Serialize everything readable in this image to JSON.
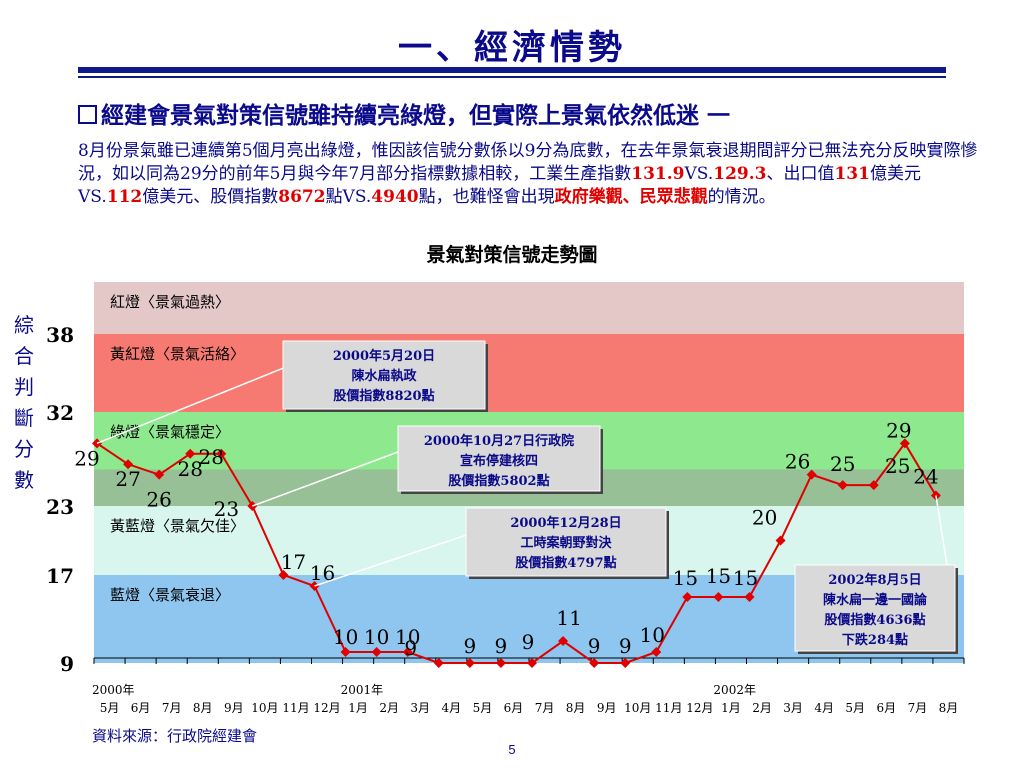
{
  "page": {
    "title": "一、經濟情勢",
    "headline": "經建會景氣對策信號雖持續亮綠燈，但實際上景氣依然低迷",
    "paragraph": [
      {
        "t": " 8月份景氣雖已連續第5個月亮出綠燈，惟因該信號分數係以9分為底數，在去年景氣衰退期間評分已無法充分反映實際慘況，如以同為29分的前年5月與今年7月部分指標數據相較，工業生產指數",
        "red": false
      },
      {
        "t": "131.9",
        "red": true
      },
      {
        "t": "VS.",
        "red": false
      },
      {
        "t": "129.3",
        "red": true
      },
      {
        "t": "、出口值",
        "red": false
      },
      {
        "t": "131",
        "red": true
      },
      {
        "t": "億美元VS.",
        "red": false
      },
      {
        "t": "112",
        "red": true
      },
      {
        "t": "億美元、股價指數",
        "red": false
      },
      {
        "t": "8672",
        "red": true
      },
      {
        "t": "點VS.",
        "red": false
      },
      {
        "t": "4940",
        "red": true
      },
      {
        "t": "點，也難怪會出現",
        "red": false
      },
      {
        "t": "政府樂觀、民眾悲觀",
        "red": true
      },
      {
        "t": "的情況。",
        "red": false
      }
    ],
    "source": "資料來源：行政院經建會",
    "page_number": "5"
  },
  "chart_data": {
    "type": "line",
    "title": "景氣對策信號走勢圖",
    "ylabel": "綜合判斷分數",
    "yticks": [
      38,
      32,
      23,
      17,
      9
    ],
    "ylim": [
      9,
      45
    ],
    "bands": [
      {
        "label": "紅燈〈景氣過熱〉",
        "from": 38,
        "to": 45,
        "color": "#e4c7c7"
      },
      {
        "label": "黃紅燈〈景氣活絡〉",
        "from": 32,
        "to": 38,
        "color": "#f77a72"
      },
      {
        "label": "綠燈〈景氣穩定〉",
        "from": 23,
        "to": 32,
        "color": "#8ee88e"
      },
      {
        "label": "黃藍燈〈景氣欠佳〉",
        "from": 17,
        "to": 23,
        "color": "#d8f6ee"
      },
      {
        "label": "藍燈〈景氣衰退〉",
        "from": 9,
        "to": 17,
        "color": "#8ec6ef"
      }
    ],
    "year_labels": [
      {
        "label": "2000年",
        "index": 0
      },
      {
        "label": "2001年",
        "index": 8
      },
      {
        "label": "2002年",
        "index": 20
      }
    ],
    "categories": [
      "5月",
      "6月",
      "7月",
      "8月",
      "9月",
      "10月",
      "11月",
      "12月",
      "1月",
      "2月",
      "3月",
      "4月",
      "5月",
      "6月",
      "7月",
      "8月",
      "9月",
      "10月",
      "11月",
      "12月",
      "1月",
      "2月",
      "3月",
      "4月",
      "5月",
      "6月",
      "7月",
      "8月"
    ],
    "series": [
      {
        "color": "#e00000",
        "values": [
          29,
          27,
          26,
          28,
          28,
          23,
          17,
          16,
          10,
          10,
          10,
          9,
          9,
          9,
          9,
          11,
          9,
          9,
          10,
          15,
          15,
          15,
          20,
          26,
          25,
          25,
          29,
          24
        ]
      }
    ],
    "annotations": [
      {
        "lines": [
          "2000年5月20日",
          "陳水扁執政",
          "股價指數8820點"
        ],
        "point": 0
      },
      {
        "lines": [
          "2000年10月27日行政院",
          "宣布停建核四",
          "股價指數5802點"
        ],
        "point": 5
      },
      {
        "lines": [
          "2000年12月28日",
          "工時案朝野對決",
          "股價指數4797點"
        ],
        "point": 7
      },
      {
        "lines": [
          "2002年8月5日",
          "陳水扁一邊一國論",
          "股價指數4636點",
          "下跌284點"
        ],
        "point": 27
      }
    ],
    "grid": false,
    "legend": "none"
  }
}
